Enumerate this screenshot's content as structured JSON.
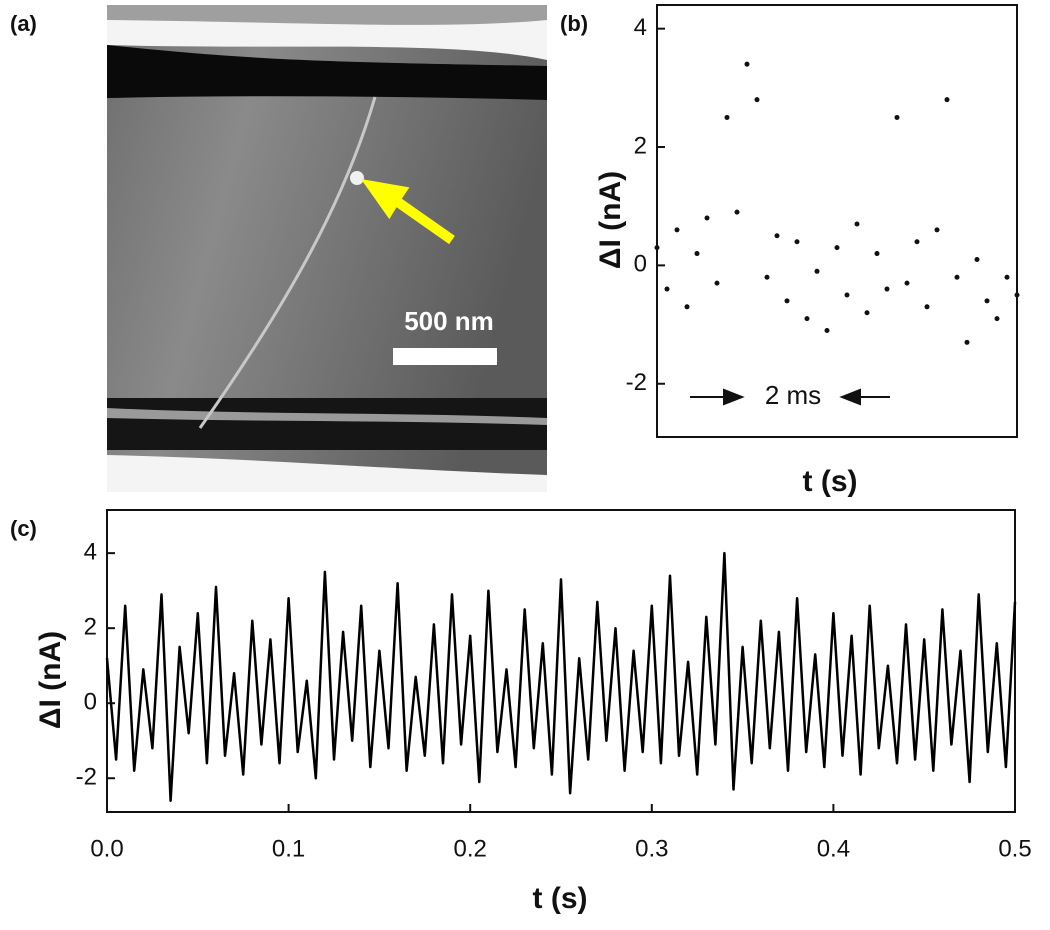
{
  "image_panel": {
    "label": "(a)",
    "scale_bar": "500 nm"
  },
  "chart_data": [
    {
      "type": "scatter",
      "label": "(b)",
      "xlabel": "t (s)",
      "ylabel": "ΔI (nA)",
      "annotation": "2 ms",
      "color": "#111111",
      "x": [
        0.0,
        0.1,
        0.2,
        0.3,
        0.4,
        0.5,
        0.6,
        0.7,
        0.8,
        0.9,
        1.0,
        1.1,
        1.2,
        1.3,
        1.4,
        1.5,
        1.6,
        1.7,
        1.8,
        1.9,
        2.0,
        2.1,
        2.2,
        2.3,
        2.4,
        2.5,
        2.6,
        2.7,
        2.8,
        2.9,
        3.0,
        3.1,
        3.2,
        3.3,
        3.4,
        3.5,
        3.6
      ],
      "values": [
        0.3,
        -0.4,
        0.6,
        -0.7,
        0.2,
        0.8,
        -0.3,
        2.5,
        0.9,
        3.4,
        2.8,
        -0.2,
        0.5,
        -0.6,
        0.4,
        -0.9,
        -0.1,
        -1.1,
        0.3,
        -0.5,
        0.7,
        -0.8,
        0.2,
        -0.4,
        2.5,
        -0.3,
        0.4,
        -0.7,
        0.6,
        2.8,
        -0.2,
        -1.3,
        0.1,
        -0.6,
        -0.9,
        -0.2,
        -0.5
      ],
      "xlim": [
        0,
        3.6
      ],
      "ylim": [
        -2.9,
        4.4
      ],
      "yticks": [
        -2,
        0,
        2,
        4
      ]
    },
    {
      "type": "line",
      "label": "(c)",
      "xlabel": "t (s)",
      "ylabel": "ΔI (nA)",
      "color": "#000000",
      "x": [
        0,
        0.005,
        0.01,
        0.015,
        0.02,
        0.025,
        0.03,
        0.035,
        0.04,
        0.045,
        0.05,
        0.055,
        0.06,
        0.065,
        0.07,
        0.075,
        0.08,
        0.085,
        0.09,
        0.095,
        0.1,
        0.105,
        0.11,
        0.115,
        0.12,
        0.125,
        0.13,
        0.135,
        0.14,
        0.145,
        0.15,
        0.155,
        0.16,
        0.165,
        0.17,
        0.175,
        0.18,
        0.185,
        0.19,
        0.195,
        0.2,
        0.205,
        0.21,
        0.215,
        0.22,
        0.225,
        0.23,
        0.235,
        0.24,
        0.245,
        0.25,
        0.255,
        0.26,
        0.265,
        0.27,
        0.275,
        0.28,
        0.285,
        0.29,
        0.295,
        0.3,
        0.305,
        0.31,
        0.315,
        0.32,
        0.325,
        0.33,
        0.335,
        0.34,
        0.345,
        0.35,
        0.355,
        0.36,
        0.365,
        0.37,
        0.375,
        0.38,
        0.385,
        0.39,
        0.395,
        0.4,
        0.405,
        0.41,
        0.415,
        0.42,
        0.425,
        0.43,
        0.435,
        0.44,
        0.445,
        0.45,
        0.455,
        0.46,
        0.465,
        0.47,
        0.475,
        0.48,
        0.485,
        0.49,
        0.495,
        0.5
      ],
      "values": [
        1.2,
        -1.5,
        2.6,
        -1.8,
        0.9,
        -1.2,
        2.9,
        -2.6,
        1.5,
        -0.8,
        2.4,
        -1.6,
        3.1,
        -1.4,
        0.8,
        -1.9,
        2.2,
        -1.1,
        1.7,
        -1.6,
        2.8,
        -1.3,
        0.6,
        -2.0,
        3.5,
        -1.5,
        1.9,
        -1.0,
        2.6,
        -1.7,
        1.4,
        -1.2,
        3.2,
        -1.8,
        0.7,
        -1.4,
        2.1,
        -1.6,
        2.9,
        -1.1,
        1.8,
        -2.1,
        3.0,
        -1.3,
        0.9,
        -1.7,
        2.5,
        -1.2,
        1.6,
        -1.9,
        3.3,
        -2.4,
        1.2,
        -1.5,
        2.7,
        -1.0,
        2.0,
        -1.8,
        1.4,
        -1.3,
        2.6,
        -1.6,
        3.4,
        -1.4,
        1.1,
        -1.9,
        2.3,
        -1.1,
        4.0,
        -2.3,
        1.5,
        -1.6,
        2.2,
        -1.2,
        1.9,
        -1.8,
        2.8,
        -1.3,
        1.3,
        -1.7,
        2.4,
        -1.4,
        1.8,
        -1.9,
        2.6,
        -1.2,
        1.0,
        -1.6,
        2.1,
        -1.5,
        1.7,
        -1.8,
        2.5,
        -1.1,
        1.4,
        -2.1,
        2.9,
        -1.3,
        1.6,
        -1.7,
        2.7
      ],
      "xlim": [
        0,
        0.5
      ],
      "ylim": [
        -2.9,
        5.15
      ],
      "yticks": [
        -2,
        0,
        2,
        4
      ],
      "xticks": [
        {
          "value": 0,
          "label": "0.0"
        },
        0.1,
        0.2,
        0.3,
        0.4,
        0.5
      ]
    }
  ]
}
